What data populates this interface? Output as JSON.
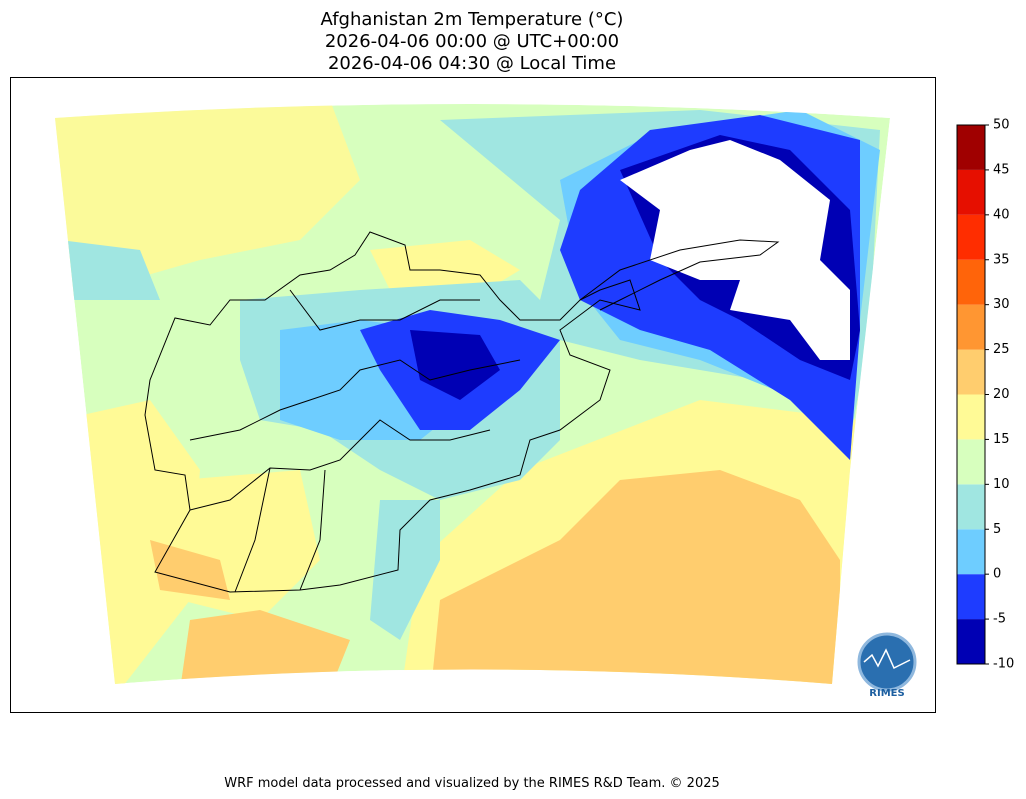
{
  "header": {
    "title_lines": [
      "Afghanistan 2m Temperature (°C)",
      "2026-04-06 00:00 @ UTC+00:00",
      "2026-04-06 04:30 @ Local Time"
    ]
  },
  "colorbar": {
    "ticks": [
      -10,
      -5,
      0,
      5,
      10,
      15,
      20,
      25,
      30,
      35,
      40,
      45,
      50
    ],
    "colors": [
      "#0000b4",
      "#1e3cff",
      "#6ecdff",
      "#a0e6e1",
      "#d7ffbe",
      "#fffa96",
      "#ffcd6e",
      "#ff9632",
      "#ff640a",
      "#ff2d00",
      "#e60f00",
      "#a00000"
    ]
  },
  "logo": {
    "text": "RIMES"
  },
  "footer": "WRF model data processed and visualized by the RIMES R&D Team. © 2025"
}
